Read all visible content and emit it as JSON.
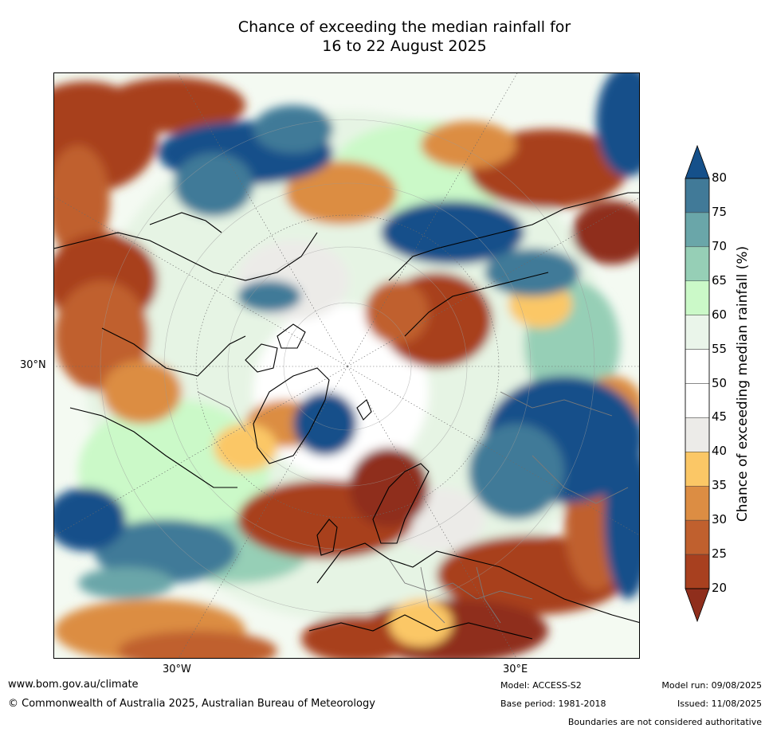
{
  "title": {
    "line1": "Chance of exceeding the median rainfall for",
    "line2": "16 to 22 August 2025"
  },
  "map": {
    "projection": "north polar stereographic",
    "graticule_labels": {
      "left": "30°N",
      "bottom_left": "30°W",
      "bottom_right": "30°E"
    }
  },
  "colorbar": {
    "label": "Chance of exceeding median rainfall (%)",
    "ticks": [
      "20",
      "25",
      "30",
      "35",
      "40",
      "45",
      "50",
      "55",
      "60",
      "65",
      "70",
      "75",
      "80"
    ],
    "bins": [
      {
        "range": "<20",
        "color": "#8f2e1c"
      },
      {
        "range": "20-25",
        "color": "#a8401f"
      },
      {
        "range": "25-30",
        "color": "#c0602e"
      },
      {
        "range": "30-35",
        "color": "#dc8d43"
      },
      {
        "range": "35-40",
        "color": "#fbc766"
      },
      {
        "range": "40-45",
        "color": "#ecebe8"
      },
      {
        "range": "45-50",
        "color": "#ffffff"
      },
      {
        "range": "50-55",
        "color": "#ffffff"
      },
      {
        "range": "55-60",
        "color": "#eaf5ea"
      },
      {
        "range": "60-65",
        "color": "#cbf9c8"
      },
      {
        "range": "65-70",
        "color": "#96cfb6"
      },
      {
        "range": "70-75",
        "color": "#6aa6a9"
      },
      {
        "range": "75-80",
        "color": "#417a98"
      },
      {
        "range": ">80",
        "color": "#15508a"
      }
    ]
  },
  "footer": {
    "website": "www.bom.gov.au/climate",
    "copyright": "© Commonwealth of Australia 2025, Australian Bureau of Meteorology",
    "model": "Model: ACCESS-S2",
    "base_period": "Base period: 1981-2018",
    "model_run": "Model run: 09/08/2025",
    "issued": "Issued: 11/08/2025",
    "disclaimer": "Boundaries are not considered authoritative"
  }
}
